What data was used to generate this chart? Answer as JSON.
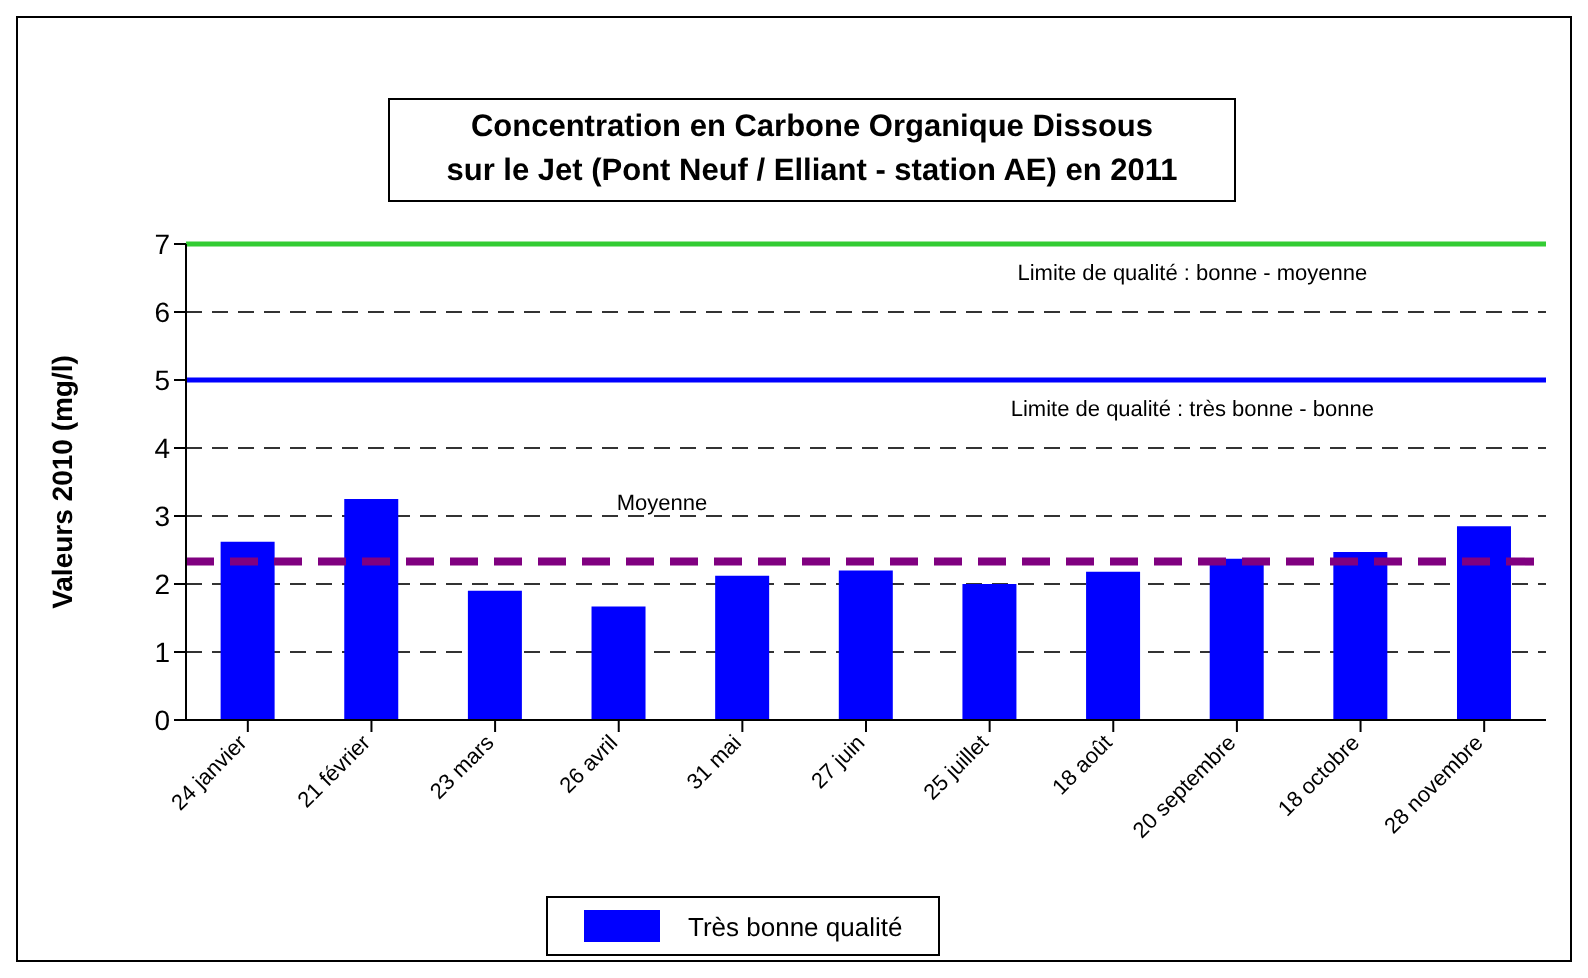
{
  "chart_data": {
    "type": "bar",
    "title": "Concentration en Carbone Organique Dissous\nsur le Jet (Pont Neuf / Elliant - station AE) en 2011",
    "ylabel": "Valeurs 2010 (mg/l)",
    "categories": [
      "24 janvier",
      "21 février",
      "23 mars",
      "26 avril",
      "31 mai",
      "27 juin",
      "25 juillet",
      "18 août",
      "20 septembre",
      "18 octobre",
      "28 novembre"
    ],
    "series": [
      {
        "name": "Très bonne qualité",
        "color": "#0000ff",
        "values": [
          2.62,
          3.25,
          1.9,
          1.67,
          2.12,
          2.2,
          2.0,
          2.18,
          2.37,
          2.47,
          2.85
        ]
      }
    ],
    "ylim": [
      0,
      7
    ],
    "yticks": [
      0,
      1,
      2,
      3,
      4,
      5,
      6,
      7
    ],
    "grid": "y",
    "legend": "bottom",
    "ref_lines": [
      {
        "axis": "y",
        "value": 7,
        "label": "Limite de qualité : bonne - moyenne",
        "color": "#33cc33",
        "line_style": "solid"
      },
      {
        "axis": "y",
        "value": 5,
        "label": "Limite de qualité : très bonne - bonne",
        "color": "#0000ff",
        "line_style": "solid"
      },
      {
        "axis": "y",
        "value": 2.33,
        "label": "Moyenne",
        "color": "#800080",
        "line_style": "dashed"
      }
    ]
  }
}
